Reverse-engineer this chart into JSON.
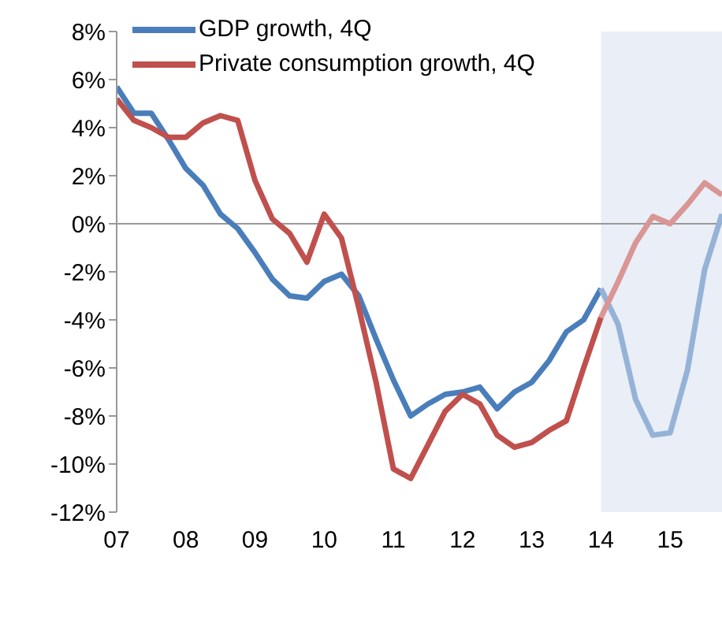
{
  "chart_data": {
    "type": "line",
    "xlim": [
      2007,
      2015.75
    ],
    "xticks": [
      {
        "value": 2007,
        "label": "07"
      },
      {
        "value": 2008,
        "label": "08"
      },
      {
        "value": 2009,
        "label": "09"
      },
      {
        "value": 2010,
        "label": "10"
      },
      {
        "value": 2011,
        "label": "11"
      },
      {
        "value": 2012,
        "label": "12"
      },
      {
        "value": 2013,
        "label": "13"
      },
      {
        "value": 2014,
        "label": "14"
      },
      {
        "value": 2015,
        "label": "15"
      }
    ],
    "ylim": [
      -12,
      8
    ],
    "yticks": [
      {
        "value": -12,
        "label": "-12%"
      },
      {
        "value": -10,
        "label": "-10%"
      },
      {
        "value": -8,
        "label": "-8%"
      },
      {
        "value": -6,
        "label": "-6%"
      },
      {
        "value": -4,
        "label": "-4%"
      },
      {
        "value": -2,
        "label": "-2%"
      },
      {
        "value": 0,
        "label": "0%"
      },
      {
        "value": 2,
        "label": "2%"
      },
      {
        "value": 4,
        "label": "4%"
      },
      {
        "value": 6,
        "label": "6%"
      },
      {
        "value": 8,
        "label": "8%"
      }
    ],
    "grid": false,
    "legend": "top left",
    "line_style": "solid",
    "marker": "none",
    "bands": [
      {
        "axis": "x",
        "from": 2014,
        "to": 2015.75,
        "color": "#e9eef7"
      }
    ],
    "ref_lines": [
      {
        "axis": "y",
        "value": 0,
        "color": "#999999"
      }
    ],
    "series": [
      {
        "name": "GDP growth, 4Q",
        "color": "#4a7ebb",
        "x": [
          2007,
          2007.25,
          2007.5,
          2007.75,
          2008,
          2008.25,
          2008.5,
          2008.75,
          2009,
          2009.25,
          2009.5,
          2009.75,
          2010,
          2010.25,
          2010.5,
          2010.75,
          2011,
          2011.25,
          2011.5,
          2011.75,
          2012,
          2012.25,
          2012.5,
          2012.75,
          2013,
          2013.25,
          2013.5,
          2013.75,
          2014
        ],
        "values": [
          5.7,
          4.6,
          4.6,
          3.5,
          2.3,
          1.6,
          0.4,
          -0.2,
          -1.2,
          -2.3,
          -3.0,
          -3.1,
          -2.4,
          -2.1,
          -3.0,
          -4.8,
          -6.5,
          -8.0,
          -7.5,
          -7.1,
          -7.0,
          -6.8,
          -7.7,
          -7.0,
          -6.6,
          -5.7,
          -4.5,
          -4.0,
          -2.7
        ]
      },
      {
        "name": "Private consumption growth, 4Q",
        "color": "#c0504d",
        "x": [
          2007,
          2007.25,
          2007.5,
          2007.75,
          2008,
          2008.25,
          2008.5,
          2008.75,
          2009,
          2009.25,
          2009.5,
          2009.75,
          2010,
          2010.25,
          2010.5,
          2010.75,
          2011,
          2011.25,
          2011.5,
          2011.75,
          2012,
          2012.25,
          2012.5,
          2012.75,
          2013,
          2013.25,
          2013.5,
          2013.75,
          2014
        ],
        "values": [
          5.2,
          4.3,
          4.0,
          3.6,
          3.6,
          4.2,
          4.5,
          4.3,
          1.8,
          0.2,
          -0.4,
          -1.6,
          0.4,
          -0.6,
          -3.5,
          -6.6,
          -10.2,
          -10.6,
          -9.2,
          -7.8,
          -7.1,
          -7.5,
          -8.8,
          -9.3,
          -9.1,
          -8.6,
          -8.2,
          -6.0,
          -3.9
        ]
      },
      {
        "color": "#95b3d7",
        "x": [
          2014,
          2014.25,
          2014.5,
          2014.75,
          2015,
          2015.25,
          2015.5,
          2015.75
        ],
        "values": [
          -2.7,
          -4.2,
          -7.3,
          -8.8,
          -8.7,
          -6.1,
          -1.9,
          0.4
        ]
      },
      {
        "color": "#d99694",
        "x": [
          2014,
          2014.25,
          2014.5,
          2014.75,
          2015,
          2015.25,
          2015.5,
          2015.75
        ],
        "values": [
          -3.9,
          -2.4,
          -0.8,
          0.3,
          0.0,
          0.8,
          1.7,
          1.2
        ]
      }
    ]
  }
}
